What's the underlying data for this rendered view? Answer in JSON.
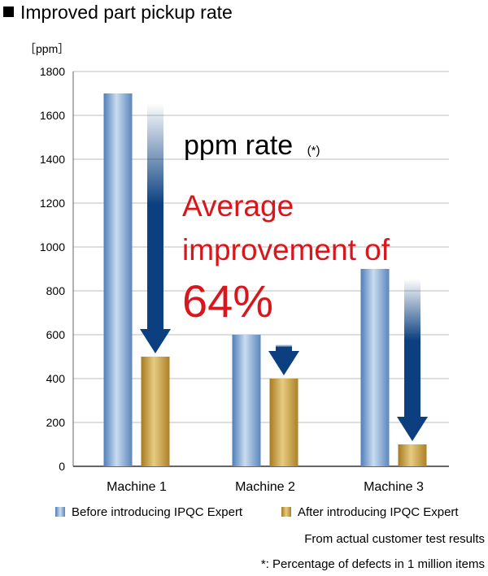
{
  "title": "Improved part pickup rate",
  "chart_data": {
    "type": "bar",
    "categories": [
      "Machine 1",
      "Machine 2",
      "Machine 3"
    ],
    "series": [
      {
        "name": "Before introducing IPQC Expert",
        "values": [
          1700,
          600,
          900
        ],
        "color": "#7fa6d1"
      },
      {
        "name": "After introducing IPQC Expert",
        "values": [
          500,
          400,
          100
        ],
        "color": "#c49a3c"
      }
    ],
    "unit_label": "［ppm］",
    "ylim": [
      0,
      1800
    ],
    "yticks": [
      0,
      200,
      400,
      600,
      800,
      1000,
      1200,
      1400,
      1600,
      1800
    ],
    "legend": "bottom",
    "arrow_color": "#0b3f80",
    "annotations": {
      "rate_label": "ppm rate",
      "rate_note": "(*)",
      "improvement_line1": "Average",
      "improvement_line2": "improvement of",
      "improvement_value": "64%",
      "improvement_color": "#d9161c"
    }
  },
  "notes": {
    "source": "From actual customer test results",
    "footnote": "*: Percentage of defects in 1 million items"
  }
}
